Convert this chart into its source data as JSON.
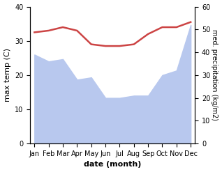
{
  "months": [
    "Jan",
    "Feb",
    "Mar",
    "Apr",
    "May",
    "Jun",
    "Jul",
    "Aug",
    "Sep",
    "Oct",
    "Nov",
    "Dec"
  ],
  "precipitation": [
    39,
    36,
    37,
    28,
    29,
    20,
    20,
    21,
    21,
    30,
    32,
    52
  ],
  "temperature": [
    32.5,
    33,
    34,
    33,
    29,
    28.5,
    28.5,
    29,
    32,
    34,
    34,
    35.5
  ],
  "temp_ylim": [
    0,
    40
  ],
  "precip_ylim": [
    0,
    60
  ],
  "fill_color": "#b8c8ee",
  "line_color": "#cc4444",
  "xlabel": "date (month)",
  "ylabel_left": "max temp (C)",
  "ylabel_right": "med. precipitation (kg/m2)",
  "bg_color": "#ffffff",
  "line_width": 1.8
}
